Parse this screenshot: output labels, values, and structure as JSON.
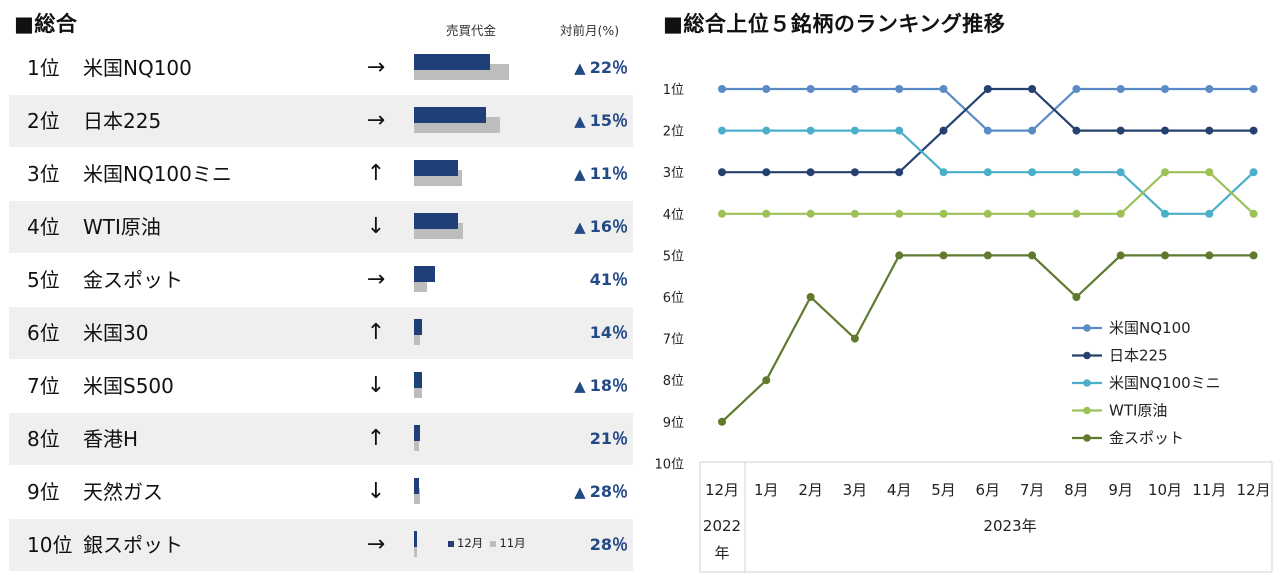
{
  "left": {
    "title": "■総合",
    "col_volume": "売買代金",
    "col_change": "対前月(%)",
    "legend": {
      "current": "12月",
      "previous": "11月"
    },
    "rows": [
      {
        "rank": "1位",
        "name": "米国NQ100",
        "arrow": "→",
        "cur": 0.4,
        "prev": 0.5,
        "up": true,
        "change": "22％"
      },
      {
        "rank": "2位",
        "name": "日本225",
        "arrow": "→",
        "cur": 0.38,
        "prev": 0.45,
        "up": true,
        "change": "15％"
      },
      {
        "rank": "3位",
        "name": "米国NQ100ミニ",
        "arrow": "↑",
        "cur": 0.23,
        "prev": 0.25,
        "up": true,
        "change": "11％"
      },
      {
        "rank": "4位",
        "name": "WTI原油",
        "arrow": "↓",
        "cur": 0.23,
        "prev": 0.26,
        "up": true,
        "change": "16％"
      },
      {
        "rank": "5位",
        "name": "金スポット",
        "arrow": "→",
        "cur": 0.11,
        "prev": 0.07,
        "up": false,
        "change": "41％"
      },
      {
        "rank": "6位",
        "name": "米国30",
        "arrow": "↑",
        "cur": 0.04,
        "prev": 0.03,
        "up": false,
        "change": "14％"
      },
      {
        "rank": "7位",
        "name": "米国S500",
        "arrow": "↓",
        "cur": 0.04,
        "prev": 0.04,
        "up": true,
        "change": "18％"
      },
      {
        "rank": "8位",
        "name": "香港H",
        "arrow": "↑",
        "cur": 0.03,
        "prev": 0.025,
        "up": false,
        "change": "21％"
      },
      {
        "rank": "9位",
        "name": "天然ガス",
        "arrow": "↓",
        "cur": 0.025,
        "prev": 0.03,
        "up": true,
        "change": "28％"
      },
      {
        "rank": "10位",
        "name": "銀スポット",
        "arrow": "→",
        "cur": 0.015,
        "prev": 0.015,
        "up": false,
        "change": "28％"
      }
    ]
  },
  "chart_data": {
    "type": "line",
    "title": "■総合上位５銘柄のランキング推移",
    "x": [
      "12月",
      "1月",
      "2月",
      "3月",
      "4月",
      "5月",
      "6月",
      "7月",
      "8月",
      "9月",
      "10月",
      "11月",
      "12月"
    ],
    "year_groups": [
      {
        "label": "2022年",
        "span": 1
      },
      {
        "label": "2023年",
        "span": 12
      }
    ],
    "y_ticks": [
      "1位",
      "2位",
      "3位",
      "4位",
      "5位",
      "6位",
      "7位",
      "8位",
      "9位",
      "10位"
    ],
    "ylim": [
      1,
      10
    ],
    "y_inverted": true,
    "legend_position": "right",
    "series": [
      {
        "name": "米国NQ100",
        "color": "#5b8bc6",
        "values": [
          1,
          1,
          1,
          1,
          1,
          1,
          2,
          2,
          1,
          1,
          1,
          1,
          1
        ]
      },
      {
        "name": "日本225",
        "color": "#26416f",
        "values": [
          3,
          3,
          3,
          3,
          3,
          2,
          1,
          1,
          2,
          2,
          2,
          2,
          2
        ]
      },
      {
        "name": "米国NQ100ミニ",
        "color": "#4bafc9",
        "values": [
          2,
          2,
          2,
          2,
          2,
          3,
          3,
          3,
          3,
          3,
          4,
          4,
          3
        ]
      },
      {
        "name": "WTI原油",
        "color": "#9cc257",
        "values": [
          4,
          4,
          4,
          4,
          4,
          4,
          4,
          4,
          4,
          4,
          3,
          3,
          4
        ]
      },
      {
        "name": "金スポット",
        "color": "#5f7a2d",
        "values": [
          9,
          8,
          6,
          7,
          5,
          5,
          5,
          5,
          6,
          5,
          5,
          5,
          5
        ]
      }
    ]
  }
}
